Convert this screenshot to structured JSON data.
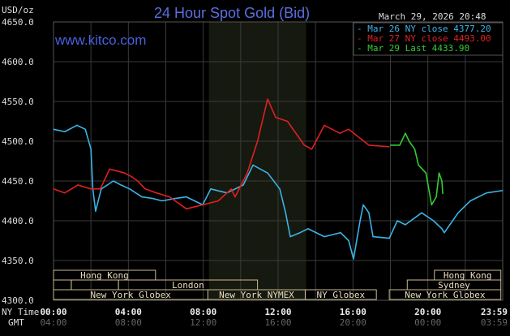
{
  "chart_data": {
    "type": "line",
    "title": "24 Hour Spot Gold (Bid)",
    "timestamp": "March 29, 2026 20:48",
    "watermark": "www.kitco.com",
    "ylabel": "USD/oz",
    "ylim": [
      4300,
      4650
    ],
    "yticks": [
      "4650.0",
      "4600.0",
      "4550.0",
      "4500.0",
      "4450.0",
      "4400.0",
      "4350.0",
      "4300.0"
    ],
    "ytick_values": [
      4650,
      4600,
      4550,
      4500,
      4450,
      4400,
      4350,
      4300
    ],
    "xlim": [
      0,
      24
    ],
    "x_row_labels": {
      "ny": "NY Time",
      "gmt": "GMT"
    },
    "xticks": [
      {
        "h": 0,
        "ny": "00:00",
        "gmt": "04:00"
      },
      {
        "h": 4,
        "ny": "04:00",
        "gmt": "08:00"
      },
      {
        "h": 8,
        "ny": "08:00",
        "gmt": "12:00"
      },
      {
        "h": 12,
        "ny": "12:00",
        "gmt": "16:00"
      },
      {
        "h": 16,
        "ny": "16:00",
        "gmt": "20:00"
      },
      {
        "h": 20,
        "ny": "20:00",
        "gmt": "00:00"
      },
      {
        "h": 24,
        "ny": "23:59",
        "gmt": "03:59"
      }
    ],
    "grid": true,
    "legend_position": "top-right",
    "shaded_range_hours": [
      8.3,
      13.5
    ],
    "series": [
      {
        "name": "Mar 26 NY close 4377.20",
        "color": "#3ab4e6",
        "points": [
          [
            0,
            4515
          ],
          [
            0.6,
            4512
          ],
          [
            1.25,
            4520
          ],
          [
            1.7,
            4515
          ],
          [
            2.0,
            4490
          ],
          [
            2.1,
            4440
          ],
          [
            2.25,
            4412
          ],
          [
            2.55,
            4440
          ],
          [
            3.2,
            4450
          ],
          [
            3.6,
            4445
          ],
          [
            4.07,
            4440
          ],
          [
            4.72,
            4430
          ],
          [
            5.3,
            4428
          ],
          [
            5.8,
            4425
          ],
          [
            6.5,
            4428
          ],
          [
            7.1,
            4430
          ],
          [
            7.97,
            4420
          ],
          [
            8.4,
            4440
          ],
          [
            9.27,
            4435
          ],
          [
            10.14,
            4445
          ],
          [
            10.66,
            4470
          ],
          [
            11.44,
            4460
          ],
          [
            12.09,
            4440
          ],
          [
            12.4,
            4410
          ],
          [
            12.65,
            4380
          ],
          [
            13.17,
            4385
          ],
          [
            13.6,
            4390
          ],
          [
            14.47,
            4380
          ],
          [
            15.34,
            4385
          ],
          [
            15.77,
            4375
          ],
          [
            16.03,
            4352
          ],
          [
            16.38,
            4400
          ],
          [
            16.55,
            4420
          ],
          [
            16.85,
            4410
          ],
          [
            17.07,
            4380
          ],
          [
            17.94,
            4378
          ],
          [
            18.37,
            4400
          ],
          [
            18.8,
            4395
          ],
          [
            19.67,
            4410
          ],
          [
            20.3,
            4400
          ],
          [
            20.75,
            4390
          ],
          [
            20.88,
            4385
          ],
          [
            21.62,
            4410
          ],
          [
            22.27,
            4425
          ],
          [
            23.14,
            4435
          ],
          [
            24,
            4438
          ]
        ]
      },
      {
        "name": "Mar 27 NY close 4493.00",
        "color": "#e02020",
        "points": [
          [
            0,
            4440
          ],
          [
            0.6,
            4435
          ],
          [
            1.3,
            4445
          ],
          [
            2.0,
            4440
          ],
          [
            2.5,
            4440
          ],
          [
            3.0,
            4465
          ],
          [
            3.8,
            4460
          ],
          [
            4.2,
            4455
          ],
          [
            4.5,
            4450
          ],
          [
            4.9,
            4440
          ],
          [
            5.5,
            4435
          ],
          [
            6.2,
            4430
          ],
          [
            7.1,
            4415
          ],
          [
            7.97,
            4420
          ],
          [
            8.8,
            4425
          ],
          [
            9.5,
            4440
          ],
          [
            9.7,
            4430
          ],
          [
            10.35,
            4460
          ],
          [
            10.9,
            4500
          ],
          [
            11.44,
            4553
          ],
          [
            11.87,
            4530
          ],
          [
            12.5,
            4525
          ],
          [
            13.4,
            4495
          ],
          [
            13.8,
            4490
          ],
          [
            14.47,
            4520
          ],
          [
            15.3,
            4510
          ],
          [
            15.77,
            4515
          ],
          [
            16.85,
            4495
          ],
          [
            17.94,
            4493
          ]
        ]
      },
      {
        "name": "Mar 29 Last 4433.90",
        "color": "#33cc33",
        "points": [
          [
            18.0,
            4495
          ],
          [
            18.5,
            4495
          ],
          [
            18.8,
            4510
          ],
          [
            19.0,
            4500
          ],
          [
            19.3,
            4490
          ],
          [
            19.5,
            4470
          ],
          [
            19.9,
            4460
          ],
          [
            20.2,
            4420
          ],
          [
            20.45,
            4430
          ],
          [
            20.6,
            4460
          ],
          [
            20.75,
            4450
          ],
          [
            20.8,
            4434
          ]
        ]
      }
    ],
    "sessions": [
      {
        "label": "Hong Kong",
        "row": 0,
        "start": 0,
        "end": 5.45
      },
      {
        "label": "Hong Kong",
        "row": 0,
        "start": 20.35,
        "end": 23.9
      },
      {
        "label": "",
        "row": 1,
        "start": 0,
        "end": 0.95
      },
      {
        "label": "",
        "row": 1,
        "start": 0.95,
        "end": 3.47
      },
      {
        "label": "London",
        "row": 1,
        "start": 3.47,
        "end": 10.9
      },
      {
        "label": "Sydney",
        "row": 1,
        "start": 18.9,
        "end": 23.9
      },
      {
        "label": "New York Globex",
        "row": 2,
        "start": 0,
        "end": 8.25
      },
      {
        "label": "New York NYMEX",
        "row": 2,
        "start": 8.25,
        "end": 13.45
      },
      {
        "label": "NY Globex",
        "row": 2,
        "start": 13.45,
        "end": 17.25
      },
      {
        "label": "New York Globex",
        "row": 2,
        "start": 17.94,
        "end": 23.9
      }
    ]
  }
}
